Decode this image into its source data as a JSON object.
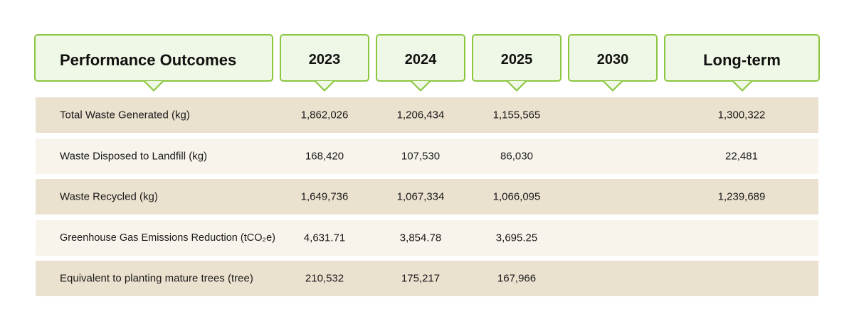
{
  "header": {
    "title": "Performance Outcomes",
    "columns": [
      "2023",
      "2024",
      "2025",
      "2030",
      "Long-term"
    ]
  },
  "rows": [
    {
      "label": "Total Waste Generated (kg)",
      "values": [
        "1,862,026",
        "1,206,434",
        "1,155,565",
        "",
        "1,300,322"
      ]
    },
    {
      "label": "Waste Disposed to Landfill (kg)",
      "values": [
        "168,420",
        "107,530",
        "86,030",
        "",
        "22,481"
      ]
    },
    {
      "label": "Waste Recycled (kg)",
      "values": [
        "1,649,736",
        "1,067,334",
        "1,066,095",
        "",
        "1,239,689"
      ]
    },
    {
      "label": "Greenhouse Gas Emissions Reduction (tCO₂e)",
      "values": [
        "4,631.71",
        "3,854.78",
        "3,695.25",
        "",
        ""
      ]
    },
    {
      "label": "Equivalent to planting mature trees (tree)",
      "values": [
        "210,532",
        "175,217",
        "167,966",
        "",
        ""
      ]
    }
  ],
  "colors": {
    "header_border": "#8cc63f",
    "header_fill": "#eff8e6",
    "row_dark": "#ebe1cf",
    "row_light": "#f8f4ec"
  }
}
